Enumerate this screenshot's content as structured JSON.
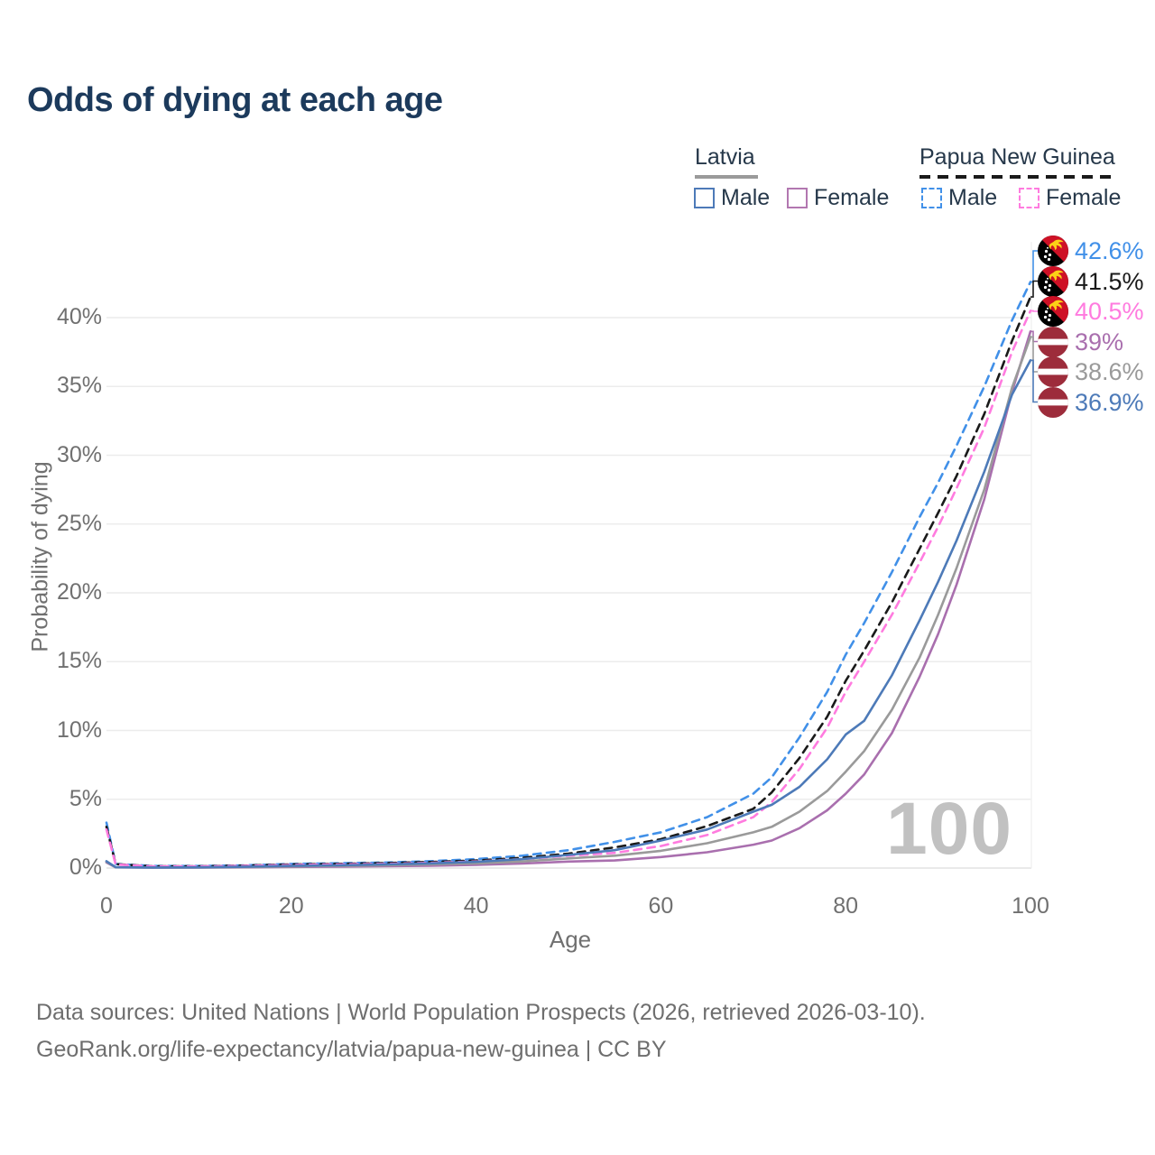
{
  "title": "Odds of dying at each age",
  "legend": {
    "groups": [
      {
        "label": "Latvia",
        "line_style": "solid",
        "line_color": "#9a9a9a",
        "items": [
          {
            "label": "Male",
            "color": "#4d7ab8"
          },
          {
            "label": "Female",
            "color": "#b277b0"
          }
        ]
      },
      {
        "label": "Papua New Guinea",
        "line_style": "dashed",
        "line_color": "#1a1a1a",
        "items": [
          {
            "label": "Male",
            "color": "#4190e8"
          },
          {
            "label": "Female",
            "color": "#ff7bdf"
          }
        ]
      }
    ]
  },
  "chart_data": {
    "type": "line",
    "title": "Odds of dying at each age",
    "xlabel": "Age",
    "ylabel": "Probability of dying",
    "x_ticks": [
      0,
      20,
      40,
      60,
      80,
      100
    ],
    "y_tick_labels": [
      "0%",
      "5%",
      "10%",
      "15%",
      "20%",
      "25%",
      "30%",
      "35%",
      "40%"
    ],
    "y_tick_values_percent": [
      0,
      5,
      10,
      15,
      20,
      25,
      30,
      35,
      40
    ],
    "xlim": [
      0,
      100
    ],
    "ylim_percent": [
      0,
      44
    ],
    "grid": "horizontal",
    "hover_age_indicator": "100",
    "x": [
      0,
      1,
      5,
      10,
      15,
      20,
      25,
      30,
      35,
      40,
      45,
      50,
      55,
      60,
      65,
      70,
      72,
      75,
      78,
      80,
      82,
      85,
      88,
      90,
      92,
      95,
      98,
      100
    ],
    "series": [
      {
        "name": "Papua New Guinea — Male",
        "flag": "papua-new-guinea",
        "color": "#4190e8",
        "dash": true,
        "end_label": "42.6%",
        "values": [
          3.3,
          0.3,
          0.15,
          0.15,
          0.2,
          0.3,
          0.35,
          0.4,
          0.5,
          0.65,
          0.9,
          1.3,
          1.9,
          2.6,
          3.7,
          5.4,
          6.6,
          9.5,
          12.8,
          15.5,
          17.8,
          21.5,
          25.5,
          28.0,
          30.7,
          35.0,
          39.8,
          42.6
        ]
      },
      {
        "name": "Papua New Guinea — Both sexes",
        "flag": "papua-new-guinea",
        "color": "#1a1a1a",
        "dash": true,
        "end_label": "41.5%",
        "values": [
          3.0,
          0.28,
          0.13,
          0.13,
          0.18,
          0.26,
          0.3,
          0.36,
          0.44,
          0.55,
          0.75,
          1.05,
          1.5,
          2.1,
          3.05,
          4.3,
          5.5,
          8.0,
          11.0,
          13.6,
          15.8,
          19.3,
          23.2,
          25.8,
          28.5,
          33.0,
          38.3,
          41.5
        ]
      },
      {
        "name": "Papua New Guinea — Female",
        "flag": "papua-new-guinea",
        "color": "#ff7bdf",
        "dash": true,
        "end_label": "40.5%",
        "values": [
          2.8,
          0.26,
          0.12,
          0.12,
          0.16,
          0.22,
          0.26,
          0.3,
          0.38,
          0.48,
          0.65,
          0.9,
          1.1,
          1.6,
          2.4,
          3.7,
          4.8,
          7.2,
          10.2,
          12.8,
          15.0,
          18.4,
          22.2,
          24.8,
          27.6,
          32.0,
          37.5,
          40.5
        ]
      },
      {
        "name": "Latvia — Female",
        "flag": "latvia",
        "color": "#a96fae",
        "dash": false,
        "end_label": "39%",
        "values": [
          0.4,
          0.05,
          0.03,
          0.03,
          0.05,
          0.08,
          0.1,
          0.13,
          0.17,
          0.23,
          0.33,
          0.47,
          0.55,
          0.8,
          1.15,
          1.7,
          2.0,
          2.9,
          4.2,
          5.4,
          6.8,
          9.8,
          13.9,
          17.0,
          20.6,
          26.8,
          34.6,
          39.0
        ]
      },
      {
        "name": "Latvia — Both sexes",
        "flag": "latvia",
        "color": "#9a9a9a",
        "dash": false,
        "end_label": "38.6%",
        "values": [
          0.45,
          0.05,
          0.03,
          0.04,
          0.07,
          0.12,
          0.16,
          0.2,
          0.26,
          0.34,
          0.48,
          0.7,
          0.9,
          1.25,
          1.8,
          2.6,
          3.0,
          4.1,
          5.6,
          7.0,
          8.5,
          11.5,
          15.3,
          18.4,
          21.8,
          27.5,
          34.9,
          38.6
        ]
      },
      {
        "name": "Latvia — Male",
        "flag": "latvia",
        "color": "#4d7ab8",
        "dash": false,
        "end_label": "36.9%",
        "values": [
          0.5,
          0.06,
          0.04,
          0.05,
          0.09,
          0.16,
          0.2,
          0.26,
          0.34,
          0.45,
          0.65,
          0.95,
          1.3,
          2.0,
          2.8,
          4.1,
          4.6,
          5.9,
          7.9,
          9.7,
          10.7,
          14.0,
          18.0,
          20.8,
          23.8,
          28.8,
          34.4,
          36.9
        ]
      }
    ]
  },
  "flag_colors": {
    "latvia_red": "#9d2c3b",
    "png_red": "#ce1126",
    "png_black": "#000000",
    "png_yellow": "#fcd116",
    "star_white": "#ffffff"
  },
  "footer": {
    "line1": "Data sources: United Nations | World Population Prospects (2026, retrieved 2026-03-10).",
    "line2": "GeoRank.org/life-expectancy/latvia/papua-new-guinea | CC BY"
  }
}
